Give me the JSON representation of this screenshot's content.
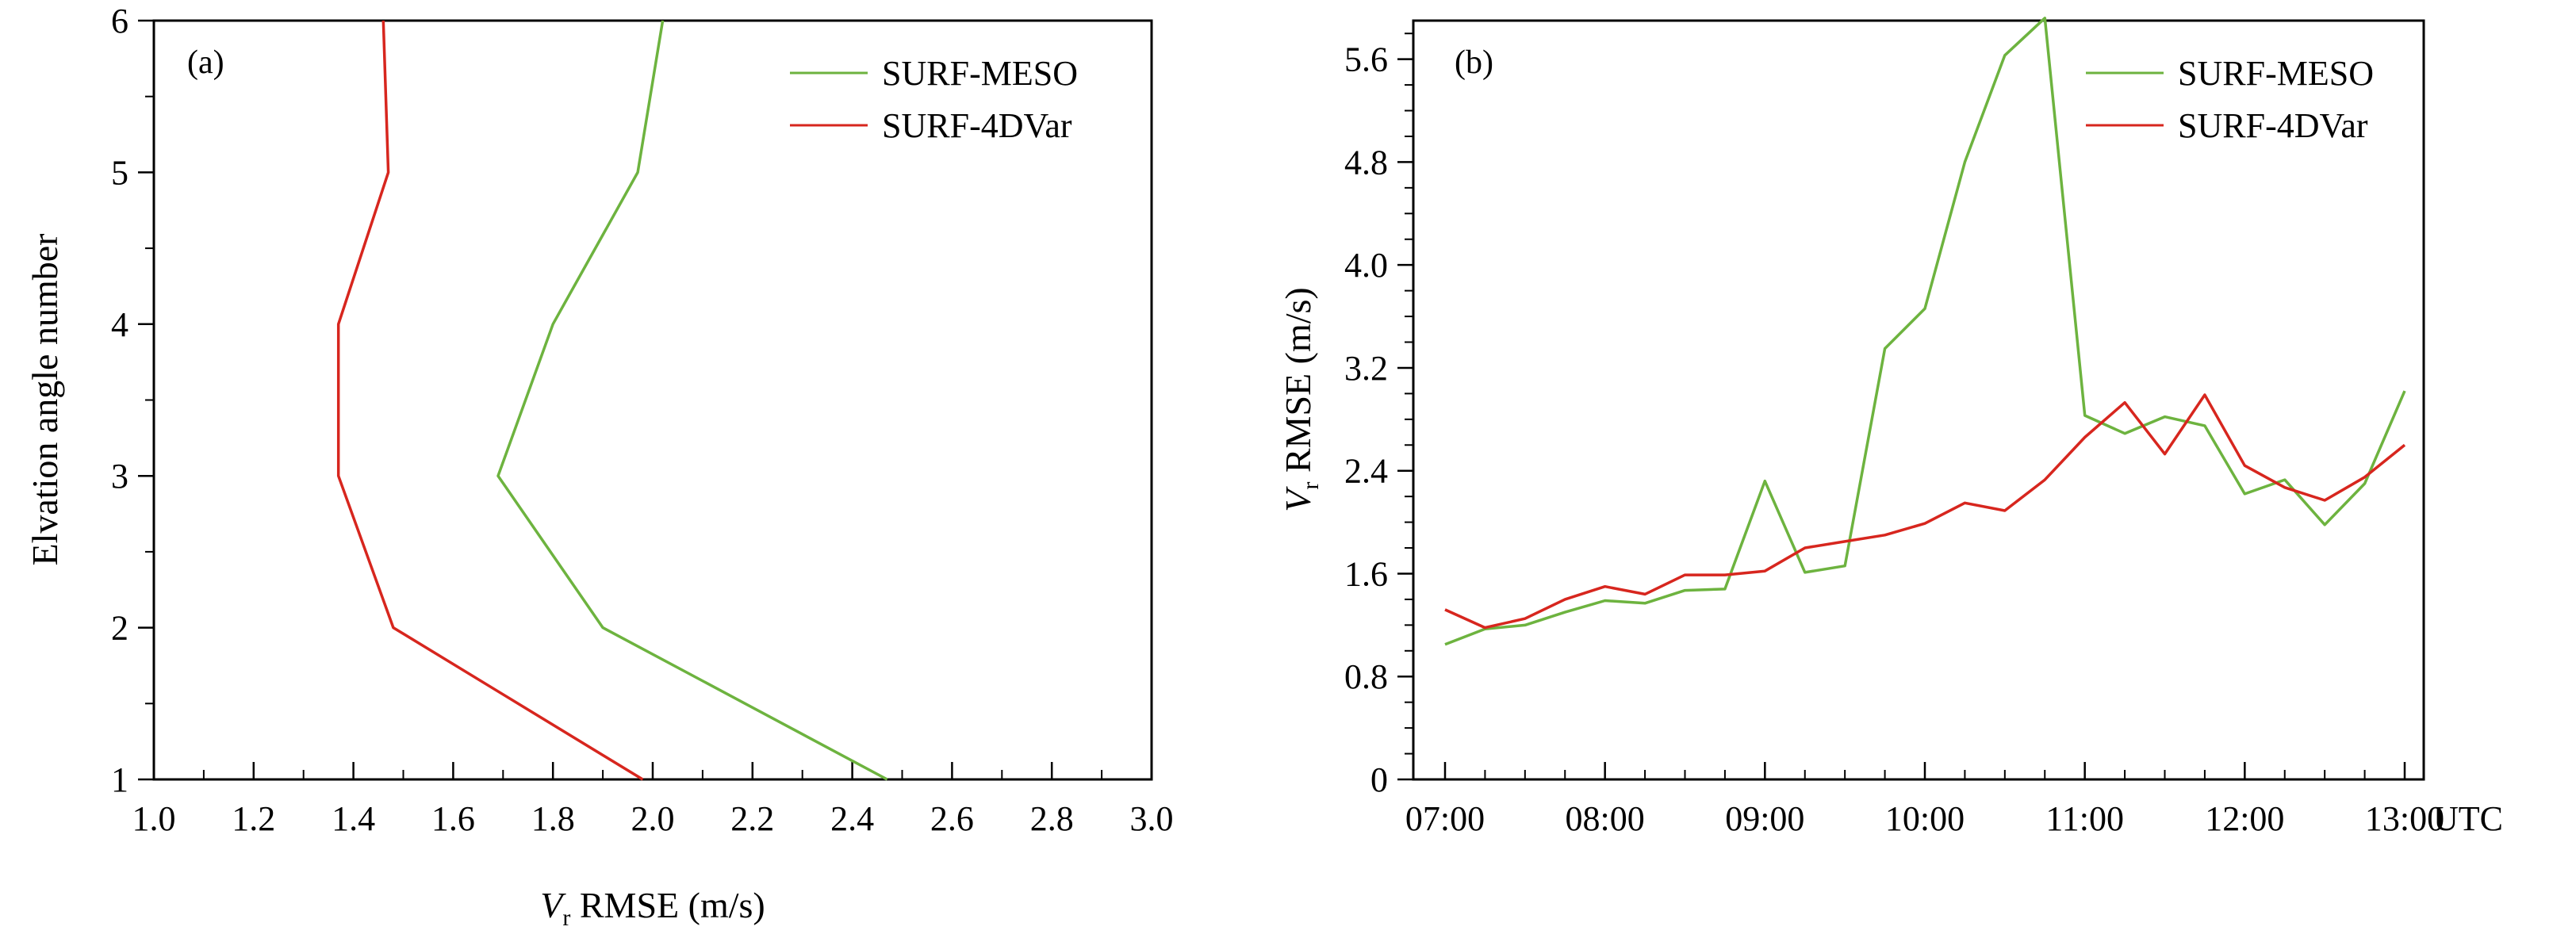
{
  "chart_data": [
    {
      "type": "line",
      "panel_label": "(a)",
      "xlabel_var": "V",
      "xlabel_sub": "r",
      "xlabel_rest": " RMSE (m/s)",
      "ylabel": "Elvation angle number",
      "xlim": [
        1.0,
        3.0
      ],
      "ylim": [
        1,
        6
      ],
      "x_ticks": [
        1.0,
        1.2,
        1.4,
        1.6,
        1.8,
        2.0,
        2.2,
        2.4,
        2.6,
        2.8,
        3.0
      ],
      "x_tick_labels": [
        "1.0",
        "1.2",
        "1.4",
        "1.6",
        "1.8",
        "2.0",
        "2.2",
        "2.4",
        "2.6",
        "2.8",
        "3.0"
      ],
      "y_ticks": [
        1,
        2,
        3,
        4,
        5,
        6
      ],
      "y_tick_labels": [
        "1",
        "2",
        "3",
        "4",
        "5",
        "6"
      ],
      "grid": false,
      "legend_position": "top-right",
      "series": [
        {
          "name": "SURF-MESO",
          "color": "#6db33f",
          "x": [
            2.47,
            1.9,
            1.69,
            1.8,
            1.97,
            2.02
          ],
          "y": [
            1,
            2,
            3,
            4,
            5,
            6
          ]
        },
        {
          "name": "SURF-4DVar",
          "color": "#d7261e",
          "x": [
            1.98,
            1.48,
            1.37,
            1.37,
            1.47,
            1.46
          ],
          "y": [
            1,
            2,
            3,
            4,
            5,
            6
          ]
        }
      ]
    },
    {
      "type": "line",
      "panel_label": "(b)",
      "ylabel_var": "V",
      "ylabel_sub": "r",
      "ylabel_rest": " RMSE (m/s)",
      "x_unit": "UTC",
      "xlim": [
        "07:00",
        "13:00"
      ],
      "ylim": [
        0,
        5.9
      ],
      "x_tick_labels": [
        "07:00",
        "08:00",
        "09:00",
        "10:00",
        "11:00",
        "12:00",
        "13:00"
      ],
      "y_ticks": [
        0,
        0.8,
        1.6,
        2.4,
        3.2,
        4.0,
        4.8,
        5.6
      ],
      "y_tick_labels": [
        "0",
        "0.8",
        "1.6",
        "2.4",
        "3.2",
        "4.0",
        "4.8",
        "5.6"
      ],
      "grid": false,
      "legend_position": "top-right",
      "x": [
        "07:00",
        "07:15",
        "07:30",
        "07:45",
        "08:00",
        "08:15",
        "08:30",
        "08:45",
        "09:00",
        "09:15",
        "09:30",
        "09:45",
        "10:00",
        "10:15",
        "10:30",
        "10:45",
        "11:00",
        "11:15",
        "11:30",
        "11:45",
        "12:00",
        "12:15",
        "12:30",
        "12:45",
        "13:00"
      ],
      "series": [
        {
          "name": "SURF-MESO",
          "color": "#6db33f",
          "values": [
            1.05,
            1.17,
            1.2,
            1.3,
            1.39,
            1.37,
            1.47,
            1.48,
            2.32,
            1.61,
            1.66,
            3.35,
            3.66,
            4.8,
            5.63,
            5.92,
            2.83,
            2.69,
            2.82,
            2.75,
            2.22,
            2.33,
            1.98,
            2.3,
            3.02
          ]
        },
        {
          "name": "SURF-4DVar",
          "color": "#d7261e",
          "values": [
            1.32,
            1.18,
            1.25,
            1.4,
            1.5,
            1.44,
            1.59,
            1.59,
            1.62,
            1.8,
            1.85,
            1.9,
            1.99,
            2.15,
            2.09,
            2.33,
            2.66,
            2.93,
            2.53,
            2.99,
            2.44,
            2.27,
            2.17,
            2.35,
            2.6
          ]
        }
      ]
    }
  ]
}
